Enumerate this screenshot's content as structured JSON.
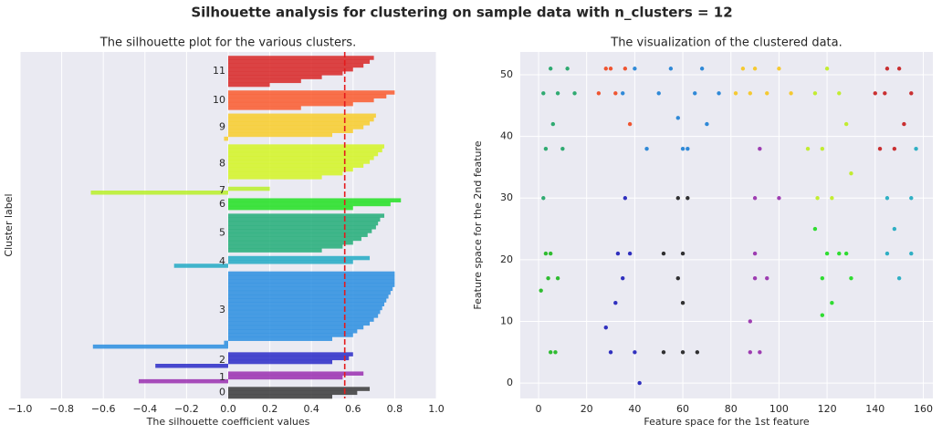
{
  "title": "Silhouette analysis for clustering on sample data with n_clusters = 12",
  "chart_data": [
    {
      "type": "silhouette",
      "title": "The silhouette plot for the various clusters.",
      "x_label": "The silhouette coefficient values",
      "y_label": "Cluster label",
      "xlim": [
        -1,
        1
      ],
      "xticks": [
        {
          "value": -1,
          "label": "−1.0"
        },
        {
          "value": -0.8,
          "label": "−0.8"
        },
        {
          "value": -0.6,
          "label": "−0.6"
        },
        {
          "value": -0.4,
          "label": "−0.4"
        },
        {
          "value": -0.2,
          "label": "−0.2"
        },
        {
          "value": 0,
          "label": "0.0"
        },
        {
          "value": 0.2,
          "label": "0.2"
        },
        {
          "value": 0.4,
          "label": "0.4"
        },
        {
          "value": 0.6,
          "label": "0.6"
        },
        {
          "value": 0.8,
          "label": "0.8"
        },
        {
          "value": 1,
          "label": "1.0"
        }
      ],
      "grid": true,
      "average_score": 0.56,
      "average_color": "#e41a1c",
      "series": [
        {
          "name": "0",
          "color": "#3a3a3a",
          "values": [
            0.5,
            0.62,
            0.68
          ]
        },
        {
          "name": "1",
          "color": "#9a2fb0",
          "values": [
            -0.43,
            0.55,
            0.65
          ]
        },
        {
          "name": "2",
          "color": "#2a2ac8",
          "values": [
            -0.35,
            0.5,
            0.58,
            0.6
          ]
        },
        {
          "name": "3",
          "color": "#2a8ee0",
          "values": [
            -0.65,
            -0.02,
            0.5,
            0.6,
            0.62,
            0.65,
            0.68,
            0.7,
            0.72,
            0.73,
            0.74,
            0.75,
            0.76,
            0.77,
            0.78,
            0.79,
            0.8,
            0.8,
            0.8,
            0.8
          ]
        },
        {
          "name": "4",
          "color": "#22aac4",
          "values": [
            -0.26,
            0.6,
            0.68
          ]
        },
        {
          "name": "5",
          "color": "#22ad78",
          "values": [
            0.45,
            0.55,
            0.6,
            0.64,
            0.67,
            0.69,
            0.71,
            0.72,
            0.73,
            0.75
          ]
        },
        {
          "name": "6",
          "color": "#22e022",
          "values": [
            0.6,
            0.78,
            0.83
          ]
        },
        {
          "name": "7",
          "color": "#b8f028",
          "values": [
            -0.66,
            0.2
          ]
        },
        {
          "name": "8",
          "color": "#d4f424",
          "values": [
            0.0,
            0.45,
            0.55,
            0.6,
            0.65,
            0.68,
            0.7,
            0.72,
            0.74,
            0.75
          ]
        },
        {
          "name": "9",
          "color": "#f8cc2c",
          "values": [
            -0.02,
            0.5,
            0.6,
            0.65,
            0.68,
            0.7,
            0.71
          ]
        },
        {
          "name": "10",
          "color": "#fa5a2e",
          "values": [
            0.35,
            0.6,
            0.7,
            0.76,
            0.8
          ]
        },
        {
          "name": "11",
          "color": "#d82626",
          "values": [
            0.2,
            0.35,
            0.45,
            0.55,
            0.6,
            0.65,
            0.68,
            0.7
          ]
        }
      ]
    },
    {
      "type": "scatter",
      "title": "The visualization of the clustered data.",
      "x_label": "Feature space for the 1st feature",
      "y_label": "Feature space for the 2nd feature",
      "xlim": [
        -7.6,
        164
      ],
      "ylim": [
        -2.5,
        53.7
      ],
      "xticks": [
        0,
        20,
        40,
        60,
        80,
        100,
        120,
        140,
        160
      ],
      "yticks": [
        0,
        10,
        20,
        30,
        40,
        50
      ],
      "grid": true,
      "series": [
        {
          "color": "#000000",
          "x": [
            52,
            60,
            66,
            58,
            60,
            58,
            62,
            52,
            60
          ],
          "y": [
            5,
            5,
            5,
            17,
            21,
            30,
            30,
            21,
            13
          ]
        },
        {
          "color": "#8a10a0",
          "x": [
            88,
            92,
            90,
            95,
            90,
            90,
            92,
            100,
            88
          ],
          "y": [
            5,
            5,
            17,
            17,
            21,
            30,
            38,
            30,
            10
          ]
        },
        {
          "color": "#0000b0",
          "x": [
            28,
            30,
            35,
            33,
            36,
            42,
            32,
            40,
            38
          ],
          "y": [
            9,
            5,
            17,
            21,
            30,
            0,
            13,
            5,
            21
          ]
        },
        {
          "color": "#0070d0",
          "x": [
            40,
            55,
            65,
            50,
            45,
            60,
            70,
            75,
            58,
            35,
            68,
            62
          ],
          "y": [
            51,
            51,
            47,
            47,
            38,
            38,
            42,
            47,
            43,
            47,
            51,
            38
          ]
        },
        {
          "color": "#00a0b8",
          "x": [
            145,
            155,
            150,
            155,
            145,
            157,
            148
          ],
          "y": [
            21,
            21,
            17,
            30,
            30,
            38,
            25
          ]
        },
        {
          "color": "#009a50",
          "x": [
            2,
            5,
            8,
            12,
            3,
            6,
            10,
            2,
            15
          ],
          "y": [
            47,
            51,
            47,
            51,
            38,
            42,
            38,
            30,
            47
          ]
        },
        {
          "color": "#00d800",
          "x": [
            120,
            125,
            118,
            130,
            122,
            118,
            128,
            115
          ],
          "y": [
            21,
            21,
            17,
            17,
            13,
            11,
            21,
            25
          ]
        },
        {
          "color": "#00b000",
          "x": [
            5,
            7,
            4,
            8,
            5,
            3,
            1
          ],
          "y": [
            5,
            5,
            17,
            17,
            21,
            21,
            15
          ]
        },
        {
          "color": "#b8ec00",
          "x": [
            115,
            120,
            125,
            118,
            122,
            128,
            112,
            130,
            116
          ],
          "y": [
            47,
            51,
            47,
            38,
            30,
            42,
            38,
            34,
            30
          ]
        },
        {
          "color": "#f8c000",
          "x": [
            82,
            90,
            95,
            100,
            88,
            105,
            85
          ],
          "y": [
            47,
            51,
            47,
            51,
            47,
            47,
            51
          ]
        },
        {
          "color": "#f03000",
          "x": [
            28,
            32,
            36,
            25,
            38,
            30
          ],
          "y": [
            51,
            47,
            51,
            47,
            42,
            51
          ]
        },
        {
          "color": "#c00000",
          "x": [
            140,
            150,
            155,
            145,
            148,
            152,
            142,
            144
          ],
          "y": [
            47,
            51,
            47,
            51,
            38,
            42,
            38,
            47
          ]
        }
      ]
    }
  ]
}
